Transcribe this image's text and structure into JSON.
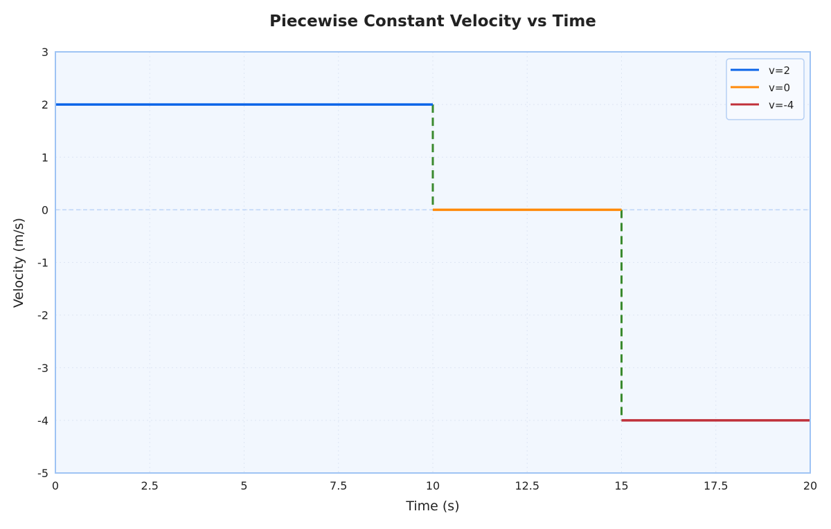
{
  "chart_data": {
    "type": "line",
    "title": "Piecewise Constant Velocity vs Time",
    "xlabel": "Time (s)",
    "ylabel": "Velocity (m/s)",
    "xlim": [
      0,
      20
    ],
    "ylim": [
      -5,
      3
    ],
    "xticks": [
      0,
      2.5,
      5,
      7.5,
      10,
      12.5,
      15,
      17.5,
      20
    ],
    "xtick_labels": [
      "0",
      "2.5",
      "5",
      "7.5",
      "10",
      "12.5",
      "15",
      "17.5",
      "20"
    ],
    "yticks": [
      3,
      2,
      1,
      0,
      -1,
      -2,
      -3,
      -4,
      -5
    ],
    "ytick_labels": [
      "3",
      "2",
      "1",
      "0",
      "-1",
      "-2",
      "-3",
      "-4",
      "-5"
    ],
    "grid": true,
    "legend_position": "top-right",
    "series": [
      {
        "name": "v=2",
        "color": "#0b64e8",
        "x": [
          0,
          10
        ],
        "y": [
          2,
          2
        ]
      },
      {
        "name": "v=0",
        "color": "#ff8a0a",
        "x": [
          10,
          15
        ],
        "y": [
          0,
          0
        ]
      },
      {
        "name": "v=-4",
        "color": "#c0303a",
        "x": [
          15,
          20
        ],
        "y": [
          -4,
          -4
        ]
      }
    ],
    "transitions": [
      {
        "x": [
          10,
          10
        ],
        "y": [
          2,
          0
        ],
        "color": "#3a8a2e",
        "style": "dashed"
      },
      {
        "x": [
          15,
          15
        ],
        "y": [
          0,
          -4
        ],
        "color": "#3a8a2e",
        "style": "dashed"
      }
    ],
    "reference_line": {
      "y": 0,
      "color": "#bcd4f7",
      "style": "dashed"
    },
    "colors": {
      "plot_bg": "#f2f7fe",
      "frame": "#9ec3f4"
    }
  }
}
